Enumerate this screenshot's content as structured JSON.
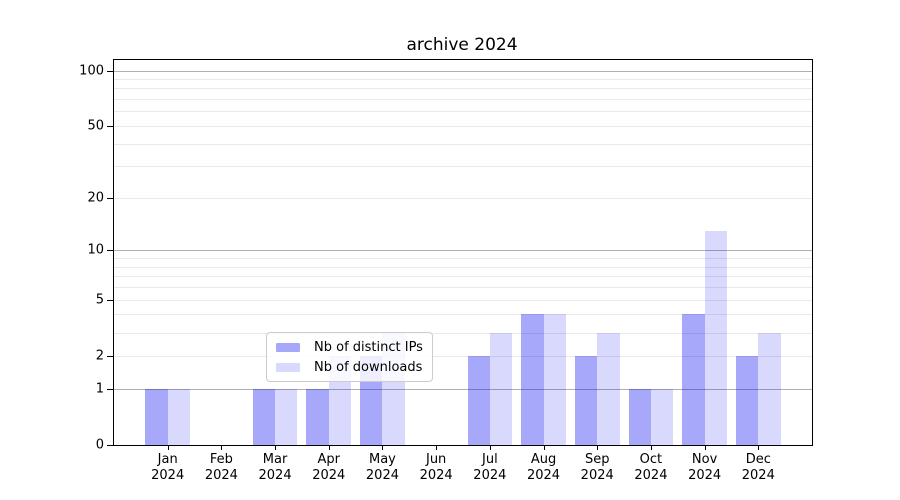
{
  "title": "archive 2024",
  "colors": {
    "distinct_ips_bar": "#aaaaf7",
    "downloads_bar": "#d9d9fb",
    "grid_major": "#b0b0b0",
    "grid_minor": "#e9e9e9",
    "axis": "#000000",
    "legend_border": "#cccccc"
  },
  "chart_data": {
    "type": "bar",
    "title": "archive 2024",
    "xlabel": "",
    "ylabel": "",
    "categories": [
      "Jan 2024",
      "Feb 2024",
      "Mar 2024",
      "Apr 2024",
      "May 2024",
      "Jun 2024",
      "Jul 2024",
      "Aug 2024",
      "Sep 2024",
      "Oct 2024",
      "Nov 2024",
      "Dec 2024"
    ],
    "series": [
      {
        "name": "Nb of distinct IPs",
        "color": "#aaaaf7",
        "rgba": "rgba(0,0,240,0.34)",
        "values": [
          1,
          0,
          1,
          1,
          2,
          0,
          2,
          4,
          2,
          1,
          4,
          2
        ]
      },
      {
        "name": "Nb of downloads",
        "color": "#d9d9fb",
        "rgba": "rgba(0,0,240,0.15)",
        "values": [
          1,
          0,
          1,
          2,
          3,
          0,
          3,
          4,
          3,
          1,
          13,
          3
        ]
      }
    ],
    "yscale": "log1p",
    "ylim": [
      0,
      114
    ],
    "yticks": [
      100,
      50,
      20,
      10,
      5,
      2,
      1,
      0
    ],
    "ytick_labels": [
      "100",
      "50",
      "20",
      "10",
      "5",
      "2",
      "1",
      "0"
    ],
    "gridlines_major": [
      1,
      10,
      100
    ],
    "gridlines_minor": [
      2,
      3,
      4,
      5,
      6,
      7,
      8,
      9,
      20,
      30,
      40,
      50,
      60,
      70,
      80,
      90
    ],
    "grid": "on",
    "legend": {
      "position": "lower center",
      "entries": [
        "Nb of distinct IPs",
        "Nb of downloads"
      ]
    }
  }
}
